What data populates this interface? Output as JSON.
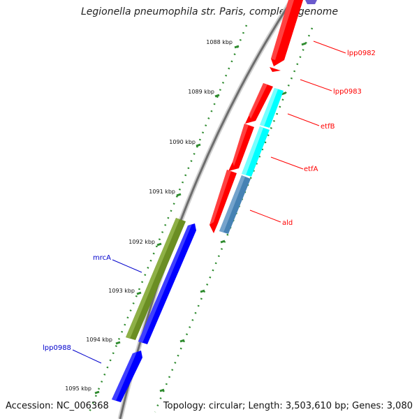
{
  "title": "Legionella pneumophila str. Paris, complete genome",
  "footer": {
    "accession": "Accession: NC_006368",
    "summary": "Topology: circular; Length: 3,503,610 bp; Genes: 3,080"
  },
  "ticks": [
    "1088 kbp",
    "1089 kbp",
    "1090 kbp",
    "1091 kbp",
    "1092 kbp",
    "1093 kbp",
    "1094 kbp",
    "1095 kbp"
  ],
  "genes": [
    {
      "name": "lpp0982",
      "color": "#ff0000"
    },
    {
      "name": "lpp0983",
      "color": "#ff0000"
    },
    {
      "name": "etfB",
      "color": "#ff0000"
    },
    {
      "name": "etfA",
      "color": "#ff0000"
    },
    {
      "name": "ald",
      "color": "#ff0000"
    },
    {
      "name": "mrcA",
      "color": "#0000cc"
    },
    {
      "name": "lpp0988",
      "color": "#0000cc"
    }
  ],
  "colors": {
    "forward_cds": "#ff0000",
    "reverse_cds": "#0000ff",
    "operon_cyan": "#00ffff",
    "operon_steel": "#4682b4",
    "operon_olive": "#6b8e23",
    "backbone": "#777777",
    "ticks": "#2e8b2e"
  }
}
